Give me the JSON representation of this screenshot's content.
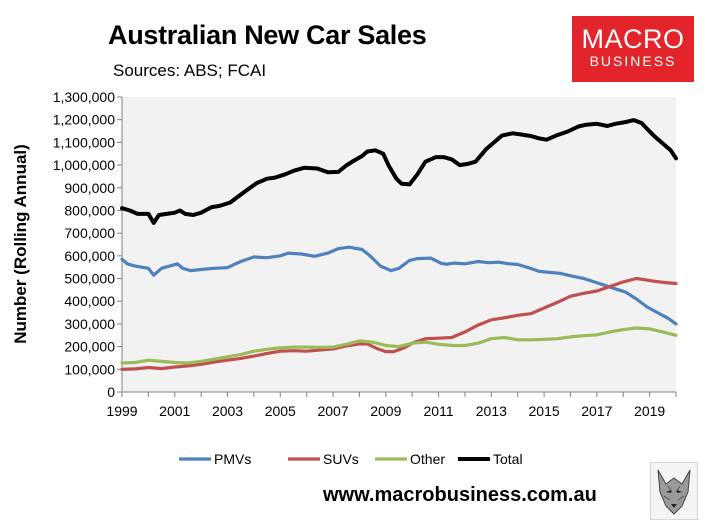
{
  "header": {
    "title": "Australian New Car Sales",
    "subtitle": "Sources: ABS; FCAI"
  },
  "logo": {
    "line1": "MACRO",
    "line2": "BUSINESS",
    "color": "#e3242b"
  },
  "footer": {
    "url": "www.macrobusiness.com.au"
  },
  "chart_data": {
    "type": "line",
    "title": "Australian New Car Sales",
    "ylabel": "Number (Rolling Annual)",
    "xlim": [
      1999,
      2020
    ],
    "ylim": [
      0,
      1300000
    ],
    "yticks": [
      0,
      100000,
      200000,
      300000,
      400000,
      500000,
      600000,
      700000,
      800000,
      900000,
      1000000,
      1100000,
      1200000,
      1300000
    ],
    "ytick_labels": [
      "0",
      "100,000",
      "200,000",
      "300,000",
      "400,000",
      "500,000",
      "600,000",
      "700,000",
      "800,000",
      "900,000",
      "1,000,000",
      "1,100,000",
      "1,200,000",
      "1,300,000"
    ],
    "xticks": [
      1999,
      2001,
      2003,
      2005,
      2007,
      2009,
      2011,
      2013,
      2015,
      2017,
      2019
    ],
    "xtick_labels": [
      "1999",
      "2001",
      "2003",
      "2005",
      "2007",
      "2009",
      "2011",
      "2013",
      "2015",
      "2017",
      "2019"
    ],
    "grid": false,
    "plot_background": "#f2f2f2",
    "legend_position": "bottom",
    "series": [
      {
        "name": "PMVs",
        "color": "#4f81bd",
        "x": [
          1999.0,
          1999.2,
          1999.5,
          2000.0,
          2000.2,
          2000.5,
          2000.8,
          2001.1,
          2001.3,
          2001.6,
          2002.0,
          2002.5,
          2003.0,
          2003.5,
          2004.0,
          2004.5,
          2005.0,
          2005.3,
          2005.8,
          2006.3,
          2006.8,
          2007.2,
          2007.6,
          2008.1,
          2008.4,
          2008.8,
          2009.2,
          2009.5,
          2009.9,
          2010.2,
          2010.7,
          2011.1,
          2011.3,
          2011.6,
          2012.0,
          2012.5,
          2012.9,
          2013.3,
          2013.6,
          2014.0,
          2014.4,
          2014.8,
          2015.2,
          2015.6,
          2016.1,
          2016.5,
          2016.9,
          2017.3,
          2017.7,
          2018.1,
          2018.5,
          2018.9,
          2019.3,
          2019.7,
          2020.0
        ],
        "y": [
          585000,
          565000,
          555000,
          545000,
          515000,
          545000,
          555000,
          565000,
          545000,
          535000,
          540000,
          545000,
          548000,
          575000,
          595000,
          592000,
          600000,
          612000,
          608000,
          598000,
          612000,
          632000,
          638000,
          628000,
          600000,
          555000,
          535000,
          545000,
          580000,
          588000,
          590000,
          567000,
          563000,
          568000,
          565000,
          575000,
          570000,
          572000,
          566000,
          562000,
          548000,
          532000,
          527000,
          523000,
          510000,
          500000,
          485000,
          470000,
          455000,
          440000,
          410000,
          375000,
          350000,
          325000,
          300000
        ]
      },
      {
        "name": "SUVs",
        "color": "#c0504d",
        "x": [
          1999.0,
          1999.5,
          2000.0,
          2000.5,
          2001.0,
          2001.5,
          2002.0,
          2002.5,
          2003.0,
          2003.5,
          2004.0,
          2004.5,
          2005.0,
          2005.5,
          2006.0,
          2006.5,
          2007.0,
          2007.5,
          2008.0,
          2008.3,
          2008.7,
          2009.0,
          2009.3,
          2009.7,
          2010.0,
          2010.5,
          2011.0,
          2011.5,
          2012.0,
          2012.5,
          2013.0,
          2013.5,
          2014.0,
          2014.5,
          2015.0,
          2015.5,
          2016.0,
          2016.5,
          2017.0,
          2017.5,
          2018.0,
          2018.5,
          2018.8,
          2019.2,
          2019.6,
          2020.0
        ],
        "y": [
          100000,
          102000,
          108000,
          103000,
          110000,
          115000,
          122000,
          132000,
          140000,
          148000,
          158000,
          170000,
          180000,
          182000,
          180000,
          185000,
          190000,
          203000,
          212000,
          212000,
          190000,
          178000,
          178000,
          195000,
          215000,
          235000,
          237000,
          240000,
          265000,
          295000,
          318000,
          327000,
          338000,
          345000,
          370000,
          395000,
          422000,
          435000,
          445000,
          465000,
          485000,
          500000,
          495000,
          488000,
          482000,
          478000
        ]
      },
      {
        "name": "Other",
        "color": "#9bbb59",
        "x": [
          1999.0,
          1999.5,
          2000.0,
          2000.5,
          2001.0,
          2001.5,
          2002.0,
          2002.5,
          2003.0,
          2003.5,
          2004.0,
          2004.5,
          2005.0,
          2005.5,
          2006.0,
          2006.5,
          2007.0,
          2007.5,
          2008.0,
          2008.5,
          2009.0,
          2009.5,
          2010.0,
          2010.5,
          2011.0,
          2011.5,
          2012.0,
          2012.5,
          2013.0,
          2013.5,
          2014.0,
          2014.5,
          2015.0,
          2015.5,
          2016.0,
          2016.5,
          2017.0,
          2017.5,
          2018.0,
          2018.5,
          2019.0,
          2019.5,
          2020.0
        ],
        "y": [
          128000,
          130000,
          140000,
          135000,
          130000,
          128000,
          135000,
          145000,
          155000,
          165000,
          180000,
          188000,
          195000,
          198000,
          198000,
          197000,
          198000,
          210000,
          225000,
          220000,
          205000,
          200000,
          215000,
          220000,
          210000,
          205000,
          205000,
          215000,
          235000,
          240000,
          230000,
          230000,
          232000,
          235000,
          243000,
          248000,
          252000,
          265000,
          275000,
          282000,
          278000,
          265000,
          250000
        ]
      },
      {
        "name": "Total",
        "color": "#000000",
        "x": [
          1999.0,
          1999.3,
          1999.6,
          2000.0,
          2000.2,
          2000.4,
          2000.7,
          2001.0,
          2001.2,
          2001.4,
          2001.7,
          2002.0,
          2002.4,
          2002.7,
          2003.1,
          2003.5,
          2003.8,
          2004.1,
          2004.5,
          2004.8,
          2005.2,
          2005.5,
          2005.9,
          2006.4,
          2006.8,
          2007.2,
          2007.5,
          2007.8,
          2008.1,
          2008.3,
          2008.6,
          2008.9,
          2009.1,
          2009.4,
          2009.6,
          2009.9,
          2010.2,
          2010.5,
          2010.9,
          2011.2,
          2011.5,
          2011.8,
          2012.1,
          2012.4,
          2012.8,
          2013.1,
          2013.4,
          2013.8,
          2014.1,
          2014.5,
          2014.8,
          2015.1,
          2015.5,
          2015.9,
          2016.3,
          2016.6,
          2017.0,
          2017.4,
          2017.7,
          2018.1,
          2018.4,
          2018.7,
          2018.9,
          2019.2,
          2019.5,
          2019.8,
          2020.0
        ],
        "y": [
          810000,
          800000,
          785000,
          785000,
          745000,
          780000,
          785000,
          790000,
          800000,
          785000,
          780000,
          790000,
          815000,
          820000,
          835000,
          870000,
          895000,
          920000,
          940000,
          945000,
          960000,
          975000,
          988000,
          985000,
          968000,
          970000,
          998000,
          1020000,
          1040000,
          1060000,
          1065000,
          1050000,
          1000000,
          940000,
          918000,
          915000,
          960000,
          1015000,
          1035000,
          1035000,
          1025000,
          1000000,
          1005000,
          1015000,
          1070000,
          1100000,
          1130000,
          1140000,
          1135000,
          1128000,
          1118000,
          1112000,
          1132000,
          1148000,
          1170000,
          1178000,
          1182000,
          1172000,
          1182000,
          1190000,
          1198000,
          1185000,
          1160000,
          1125000,
          1095000,
          1065000,
          1030000
        ]
      }
    ]
  }
}
